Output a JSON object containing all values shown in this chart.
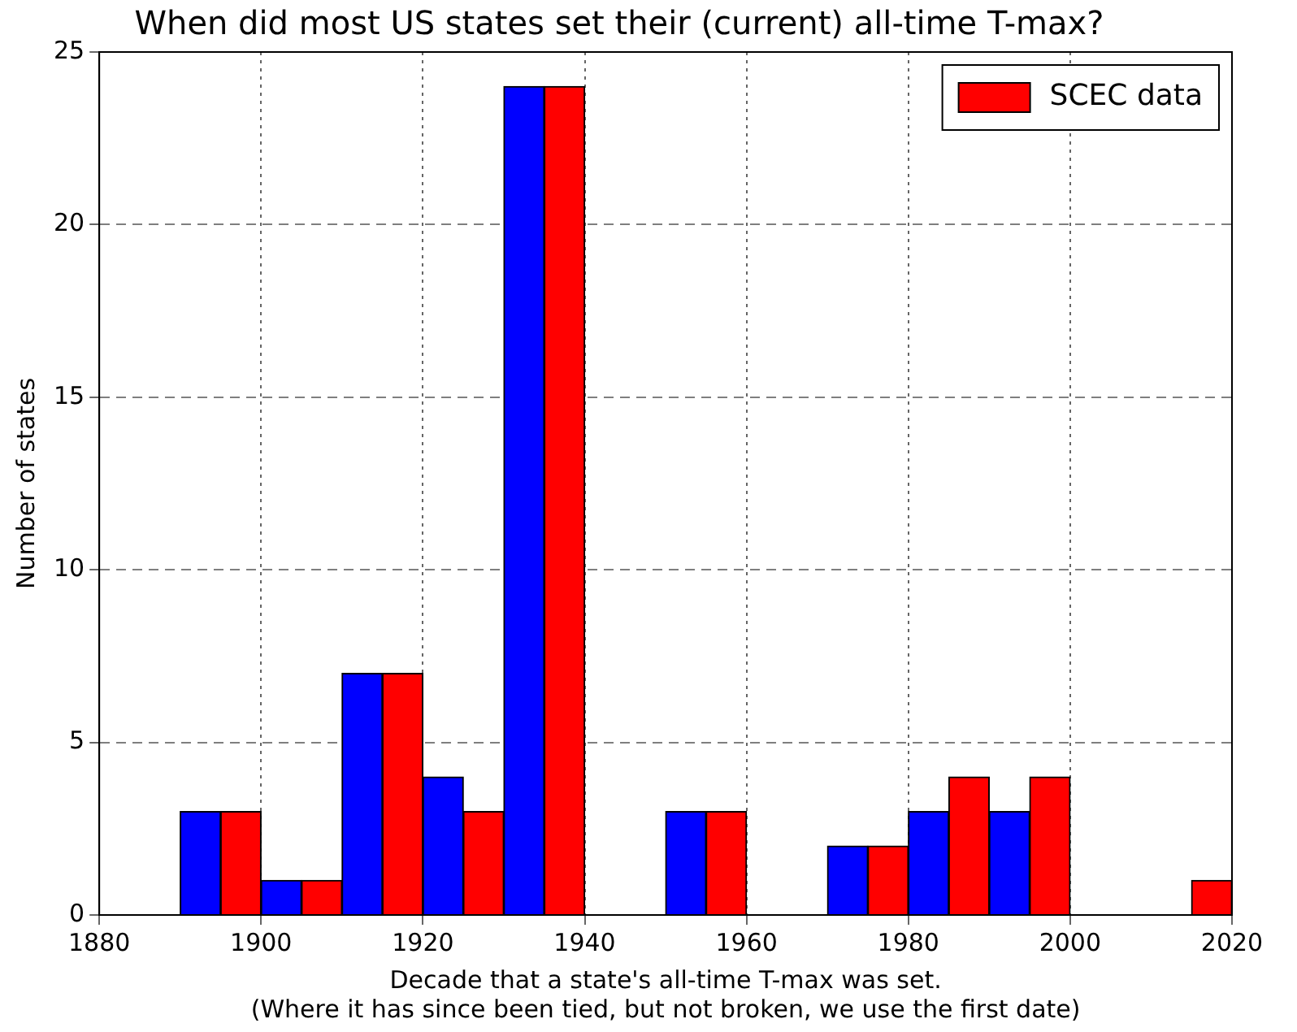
{
  "chart_data": {
    "type": "bar",
    "title": "When did most US states set their (current) all-time T-max?",
    "xlabel": "Decade that a state's all-time T-max was set.\n(Where it has since been tied, but not broken, we use the first date)",
    "ylabel": "Number of states",
    "series": [
      {
        "color": "#0000ff",
        "x": [
          1892.5,
          1902.5,
          1912.5,
          1922.5,
          1932.5,
          1952.5,
          1972.5,
          1982.5,
          1992.5,
          2012.5
        ],
        "values": [
          3,
          1,
          7,
          4,
          24,
          3,
          2,
          3,
          3,
          0
        ]
      },
      {
        "name": "SCEC data",
        "color": "#ff0000",
        "x": [
          1897.5,
          1907.5,
          1917.5,
          1927.5,
          1937.5,
          1957.5,
          1977.5,
          1987.5,
          1997.5,
          2017.5
        ],
        "values": [
          3,
          1,
          7,
          3,
          24,
          3,
          2,
          4,
          4,
          1
        ]
      }
    ],
    "xlim": [
      1880,
      2020
    ],
    "xticks": [
      1880,
      1900,
      1920,
      1940,
      1960,
      1980,
      2000,
      2020
    ],
    "ylim": [
      0,
      25
    ],
    "yticks": [
      0,
      5,
      10,
      15,
      20,
      25
    ],
    "grid": true,
    "legend": "top right"
  }
}
